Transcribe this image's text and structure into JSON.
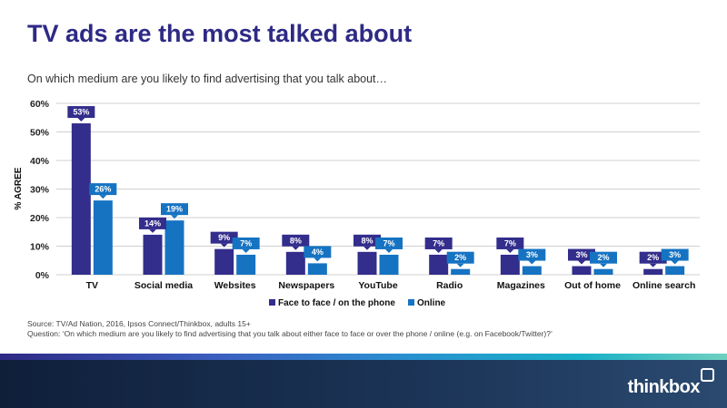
{
  "slide": {
    "title": "TV ads are the most talked about",
    "subtitle": "On which medium are you likely to find advertising that you talk about…",
    "source": "Source: TV/Ad Nation, 2016,  Ipsos Connect/Thinkbox, adults 15+",
    "question": "Question: ‘On which medium are you likely to find advertising  that you talk about either face to face or over the phone  / online (e.g. on Facebook/Twitter)?’",
    "logo": "thinkbox"
  },
  "colors": {
    "title": "#2e2a85",
    "series_face": "#332d8c",
    "series_online": "#1673c2",
    "grid": "#d0d0d0"
  },
  "chart_data": {
    "type": "bar",
    "ylabel": "% AGREE",
    "ylim": [
      0,
      60
    ],
    "yticks": [
      0,
      10,
      20,
      30,
      40,
      50,
      60
    ],
    "tick_format": "{v}%",
    "grid": true,
    "legend_position": "bottom",
    "categories": [
      "TV",
      "Social media",
      "Websites",
      "Newspapers",
      "YouTube",
      "Radio",
      "Magazines",
      "Out of home",
      "Online search"
    ],
    "series": [
      {
        "name": "Face to face / on the phone",
        "values": [
          53,
          14,
          9,
          8,
          8,
          7,
          7,
          3,
          2
        ]
      },
      {
        "name": "Online",
        "values": [
          26,
          19,
          7,
          4,
          7,
          2,
          3,
          2,
          3
        ]
      }
    ]
  }
}
